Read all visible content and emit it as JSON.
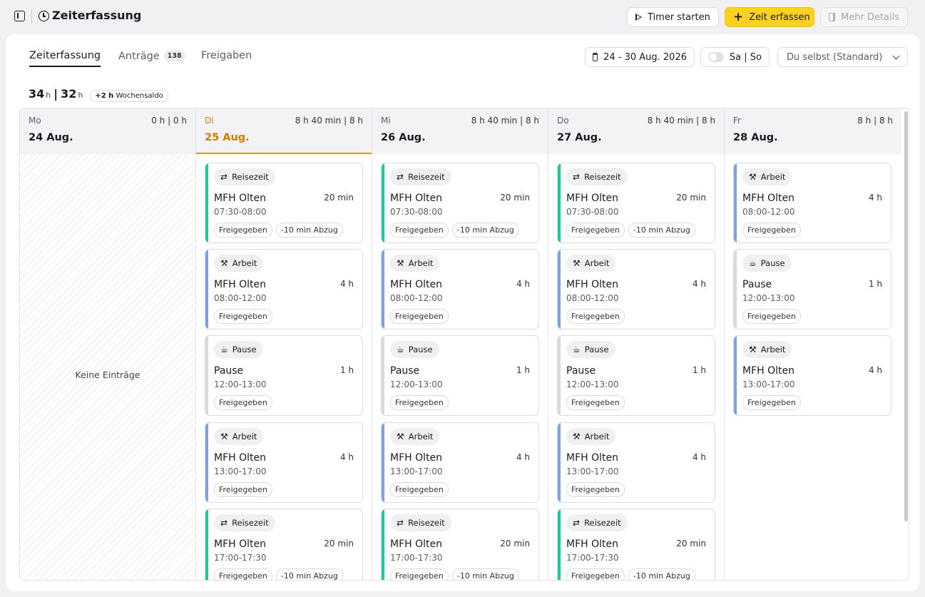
{
  "topbar": {
    "title": "Zeiterfassung",
    "timer_label": "Timer starten",
    "zeit_label": "Zeit erfassen",
    "mehr_label": "Mehr Details"
  },
  "tabs": [
    {
      "label": "Zeiterfassung"
    },
    {
      "label": "Anträge",
      "badge": "138"
    },
    {
      "label": "Freigaben"
    }
  ],
  "filters": {
    "date_range": "24 - 30 Aug. 2026",
    "weekend_label": "Sa | So",
    "user_select": "Du selbst (Standard)"
  },
  "totals": {
    "worked": "34",
    "target": "32",
    "unit": "h",
    "saldo_value": "+2 h",
    "saldo_label": "Wochensaldo"
  },
  "days": [
    {
      "name": "Mo",
      "date": "24 Aug.",
      "hours": "0 h | 0 h",
      "empty_text": "Keine Einträge"
    },
    {
      "name": "Di",
      "date": "25 Aug.",
      "hours": "8 h 40 min | 8 h"
    },
    {
      "name": "Mi",
      "date": "26 Aug.",
      "hours": "8 h 40 min | 8 h"
    },
    {
      "name": "Do",
      "date": "27 Aug.",
      "hours": "8 h 40 min | 8 h"
    },
    {
      "name": "Fr",
      "date": "28 Aug.",
      "hours": "8 h | 8 h"
    }
  ],
  "entries": {
    "travel1": {
      "type": "Reisezeit",
      "name": "MFH Olten",
      "duration": "20 min",
      "time": "07:30-08:00",
      "status": "Freigegeben",
      "deduction": "-10 min Abzug"
    },
    "work1": {
      "type": "Arbeit",
      "name": "MFH Olten",
      "duration": "4 h",
      "time": "08:00-12:00",
      "status": "Freigegeben"
    },
    "pause": {
      "type": "Pause",
      "name": "Pause",
      "duration": "1 h",
      "time": "12:00-13:00",
      "status": "Freigegeben"
    },
    "work2": {
      "type": "Arbeit",
      "name": "MFH Olten",
      "duration": "4 h",
      "time": "13:00-17:00",
      "status": "Freigegeben"
    },
    "travel2": {
      "type": "Reisezeit",
      "name": "MFH Olten",
      "duration": "20 min",
      "time": "17:00-17:30",
      "status": "Freigegeben",
      "deduction": "-10 min Abzug"
    }
  },
  "colors": {
    "accent_yellow": "#fcd21f",
    "today_orange": "#e8940c",
    "travel_bar": "#19c9a0",
    "work_bar": "#7d9ff0",
    "pause_bar": "#d9d9dc"
  },
  "icons": {
    "sidebar_toggle": "sidebar-toggle-icon",
    "clock": "clock-icon",
    "play": "play-icon",
    "plus": "plus-icon",
    "panel": "panel-icon",
    "calendar": "calendar-icon",
    "chevron": "chevron-down-icon",
    "travel": "route-icon",
    "work": "hammer-icon",
    "pause": "coffee-icon"
  }
}
